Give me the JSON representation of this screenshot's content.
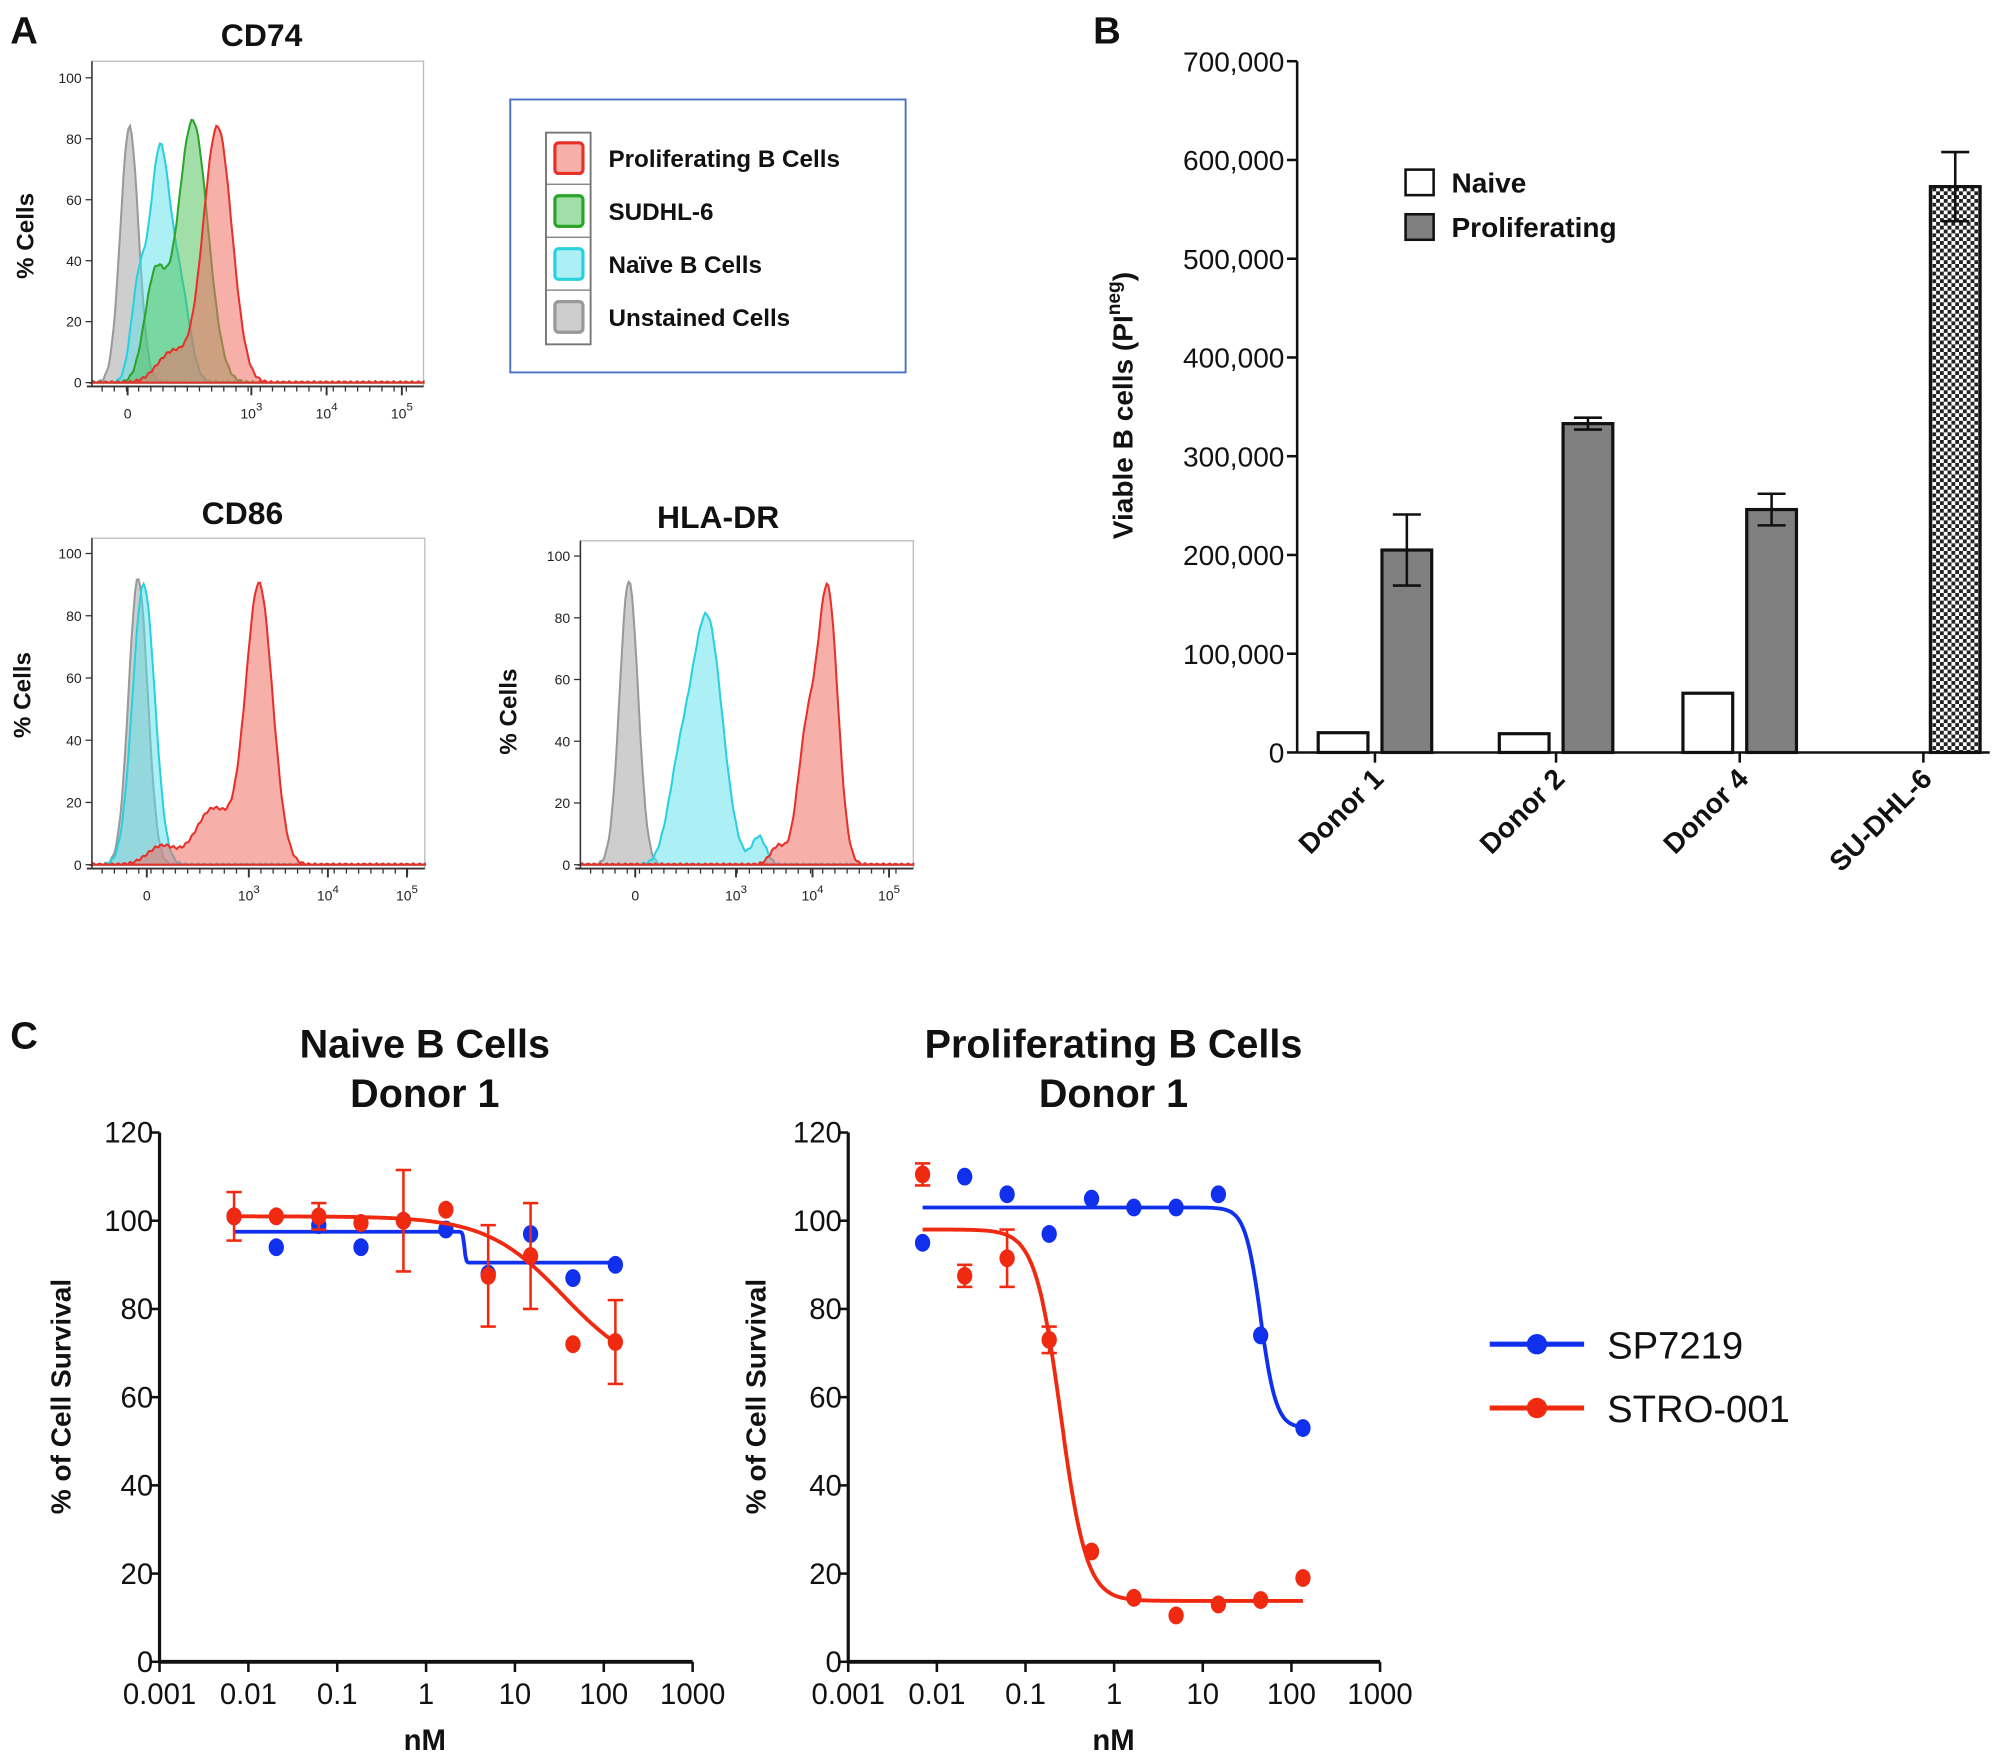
{
  "panel_labels": {
    "a": "A",
    "b": "B",
    "c": "C"
  },
  "histogram_legend": [
    {
      "name": "Proliferating B Cells",
      "color": "#e8302a"
    },
    {
      "name": "SUDHL-6",
      "color": "#2aa52a"
    },
    {
      "name": "Naïve B Cells",
      "color": "#28d0e0"
    },
    {
      "name": "Unstained Cells",
      "color": "#999999"
    }
  ],
  "dose_legend": [
    {
      "name": "SP7219",
      "color": "#1030ee"
    },
    {
      "name": "STRO-001",
      "color": "#f02a10"
    }
  ],
  "chart_data": [
    {
      "type": "area",
      "title": "CD74",
      "ylabel": "% Cells",
      "ylim": [
        0,
        100
      ],
      "yticks": [
        "0",
        "20",
        "40",
        "60",
        "80",
        "100"
      ],
      "xticks": [
        {
          "base": "0",
          "exp": ""
        },
        {
          "base": "10",
          "exp": "3"
        },
        {
          "base": "10",
          "exp": "4"
        },
        {
          "base": "10",
          "exp": "5"
        }
      ],
      "xscale": "biexponential",
      "series": [
        {
          "name": "Unstained Cells",
          "color": "#999999",
          "components": [
            [
              1.38,
              0.12,
              84
            ]
          ]
        },
        {
          "name": "Naïve B Cells",
          "color": "#28d0e0",
          "components": [
            [
              1.78,
              0.13,
              74
            ],
            [
              1.5,
              0.1,
              30
            ],
            [
              2.05,
              0.13,
              30
            ]
          ]
        },
        {
          "name": "SUDHL-6",
          "color": "#2aa52a",
          "components": [
            [
              2.22,
              0.2,
              86
            ],
            [
              1.72,
              0.14,
              34
            ]
          ]
        },
        {
          "name": "Proliferating B Cells",
          "color": "#e8302a",
          "components": [
            [
              2.55,
              0.19,
              84
            ],
            [
              1.95,
              0.2,
              10
            ]
          ]
        }
      ]
    },
    {
      "type": "area",
      "title": "CD86",
      "ylabel": "% Cells",
      "ylim": [
        0,
        100
      ],
      "yticks": [
        "0",
        "20",
        "40",
        "60",
        "80",
        "100"
      ],
      "xticks": [
        {
          "base": "0",
          "exp": ""
        },
        {
          "base": "10",
          "exp": "3"
        },
        {
          "base": "10",
          "exp": "4"
        },
        {
          "base": "10",
          "exp": "5"
        }
      ],
      "xscale": "biexponential",
      "series": [
        {
          "name": "Unstained Cells",
          "color": "#999999",
          "components": [
            [
              1.6,
              0.12,
              92
            ]
          ]
        },
        {
          "name": "Naïve B Cells",
          "color": "#28d0e0",
          "components": [
            [
              1.67,
              0.14,
              90
            ]
          ]
        },
        {
          "name": "Proliferating B Cells",
          "color": "#e8302a",
          "components": [
            [
              3.13,
              0.17,
              90
            ],
            [
              2.55,
              0.22,
              18
            ],
            [
              1.9,
              0.18,
              6
            ]
          ]
        }
      ]
    },
    {
      "type": "area",
      "title": "HLA-DR",
      "ylabel": "% Cells",
      "ylim": [
        0,
        100
      ],
      "yticks": [
        "0",
        "20",
        "40",
        "60",
        "80",
        "100"
      ],
      "xticks": [
        {
          "base": "0",
          "exp": ""
        },
        {
          "base": "10",
          "exp": "3"
        },
        {
          "base": "10",
          "exp": "4"
        },
        {
          "base": "10",
          "exp": "5"
        }
      ],
      "xscale": "biexponential",
      "series": [
        {
          "name": "Unstained Cells",
          "color": "#999999",
          "components": [
            [
              1.6,
              0.12,
              92
            ]
          ]
        },
        {
          "name": "Naïve B Cells",
          "color": "#28d0e0",
          "components": [
            [
              2.62,
              0.2,
              80
            ],
            [
              2.25,
              0.15,
              25
            ],
            [
              3.3,
              0.09,
              9
            ]
          ]
        },
        {
          "name": "Proliferating B Cells",
          "color": "#e8302a",
          "components": [
            [
              4.2,
              0.13,
              88
            ],
            [
              3.92,
              0.12,
              40
            ],
            [
              3.55,
              0.1,
              6
            ]
          ]
        }
      ]
    },
    {
      "type": "bar",
      "ylabel": {
        "main": "Viable B cells (PI",
        "sup": "neg",
        "end": ")"
      },
      "ylim": [
        0,
        700000
      ],
      "yticks": [
        "0",
        "100,000",
        "200,000",
        "300,000",
        "400,000",
        "500,000",
        "600,000",
        "700,000"
      ],
      "categories": [
        "Donor 1",
        "Donor 2",
        "Donor 4",
        "SU-DHL-6"
      ],
      "legend_placement": "top-left",
      "series": [
        {
          "name": "Naive",
          "fill": "#ffffff",
          "values": [
            20000,
            19000,
            60000,
            null
          ],
          "errors": [
            null,
            null,
            null,
            null
          ]
        },
        {
          "name": "Proliferating",
          "fill": "#808080",
          "values": [
            205000,
            333000,
            246000,
            null
          ],
          "errors": [
            36000,
            6000,
            16000,
            null
          ]
        },
        {
          "pattern": "checkered",
          "values": [
            null,
            null,
            null,
            573000
          ],
          "errors": [
            null,
            null,
            null,
            35000
          ]
        }
      ]
    },
    {
      "type": "scatter",
      "title": [
        "Naive B Cells",
        "Donor 1"
      ],
      "xlabel": "nM",
      "ylabel": "% of Cell Survival",
      "xscale": "log",
      "xlim": [
        0.001,
        1000
      ],
      "ylim": [
        0,
        120
      ],
      "xticks": [
        "0.001",
        "0.01",
        "0.1",
        "1",
        "10",
        "100",
        "1000"
      ],
      "yticks": [
        "0",
        "20",
        "40",
        "60",
        "80",
        "100",
        "120"
      ],
      "x": [
        0.0069,
        0.0206,
        0.062,
        0.185,
        0.556,
        1.67,
        5,
        15,
        45,
        135
      ],
      "series": [
        {
          "name": "SP7219",
          "y": [
            101,
            94,
            99,
            94,
            100,
            98,
            88,
            97,
            87,
            90
          ],
          "errors": [
            null,
            null,
            null,
            null,
            null,
            null,
            null,
            null,
            null,
            null
          ],
          "fit": {
            "top": 97.5,
            "bottom": 90.5,
            "ic50": 2.7,
            "hill": 50
          }
        },
        {
          "name": "STRO-001",
          "y": [
            101,
            101,
            101,
            99.5,
            100,
            102.5,
            87.5,
            92,
            72,
            72.5
          ],
          "errors": [
            5.5,
            null,
            3,
            null,
            11.5,
            null,
            11.5,
            12,
            null,
            9.5
          ],
          "fit": {
            "top": 101,
            "bottom": 65,
            "ic50": 35,
            "hill": 1
          }
        }
      ]
    },
    {
      "type": "scatter",
      "title": [
        "Proliferating B Cells",
        "Donor 1"
      ],
      "xlabel": "nM",
      "ylabel": "% of Cell Survival",
      "xscale": "log",
      "xlim": [
        0.001,
        1000
      ],
      "ylim": [
        0,
        120
      ],
      "xticks": [
        "0.001",
        "0.01",
        "0.1",
        "1",
        "10",
        "100",
        "1000"
      ],
      "yticks": [
        "0",
        "20",
        "40",
        "60",
        "80",
        "100",
        "120"
      ],
      "x": [
        0.0069,
        0.0206,
        0.062,
        0.185,
        0.556,
        1.67,
        5,
        15,
        45,
        135
      ],
      "series": [
        {
          "name": "SP7219",
          "y": [
            95,
            110,
            106,
            97,
            105,
            103,
            103,
            106,
            74,
            53
          ],
          "errors": [
            null,
            null,
            null,
            null,
            null,
            null,
            null,
            null,
            null,
            null
          ],
          "fit": {
            "top": 103,
            "bottom": 53,
            "ic50": 45,
            "hill": 5
          }
        },
        {
          "name": "STRO-001",
          "y": [
            110.5,
            87.5,
            91.5,
            73,
            25,
            14.5,
            10.5,
            13,
            14,
            19
          ],
          "errors": [
            2.5,
            2.5,
            6.5,
            3,
            null,
            null,
            null,
            null,
            null,
            null
          ],
          "fit": {
            "top": 98,
            "bottom": 13.8,
            "ic50": 0.25,
            "hill": 3
          }
        }
      ]
    }
  ]
}
